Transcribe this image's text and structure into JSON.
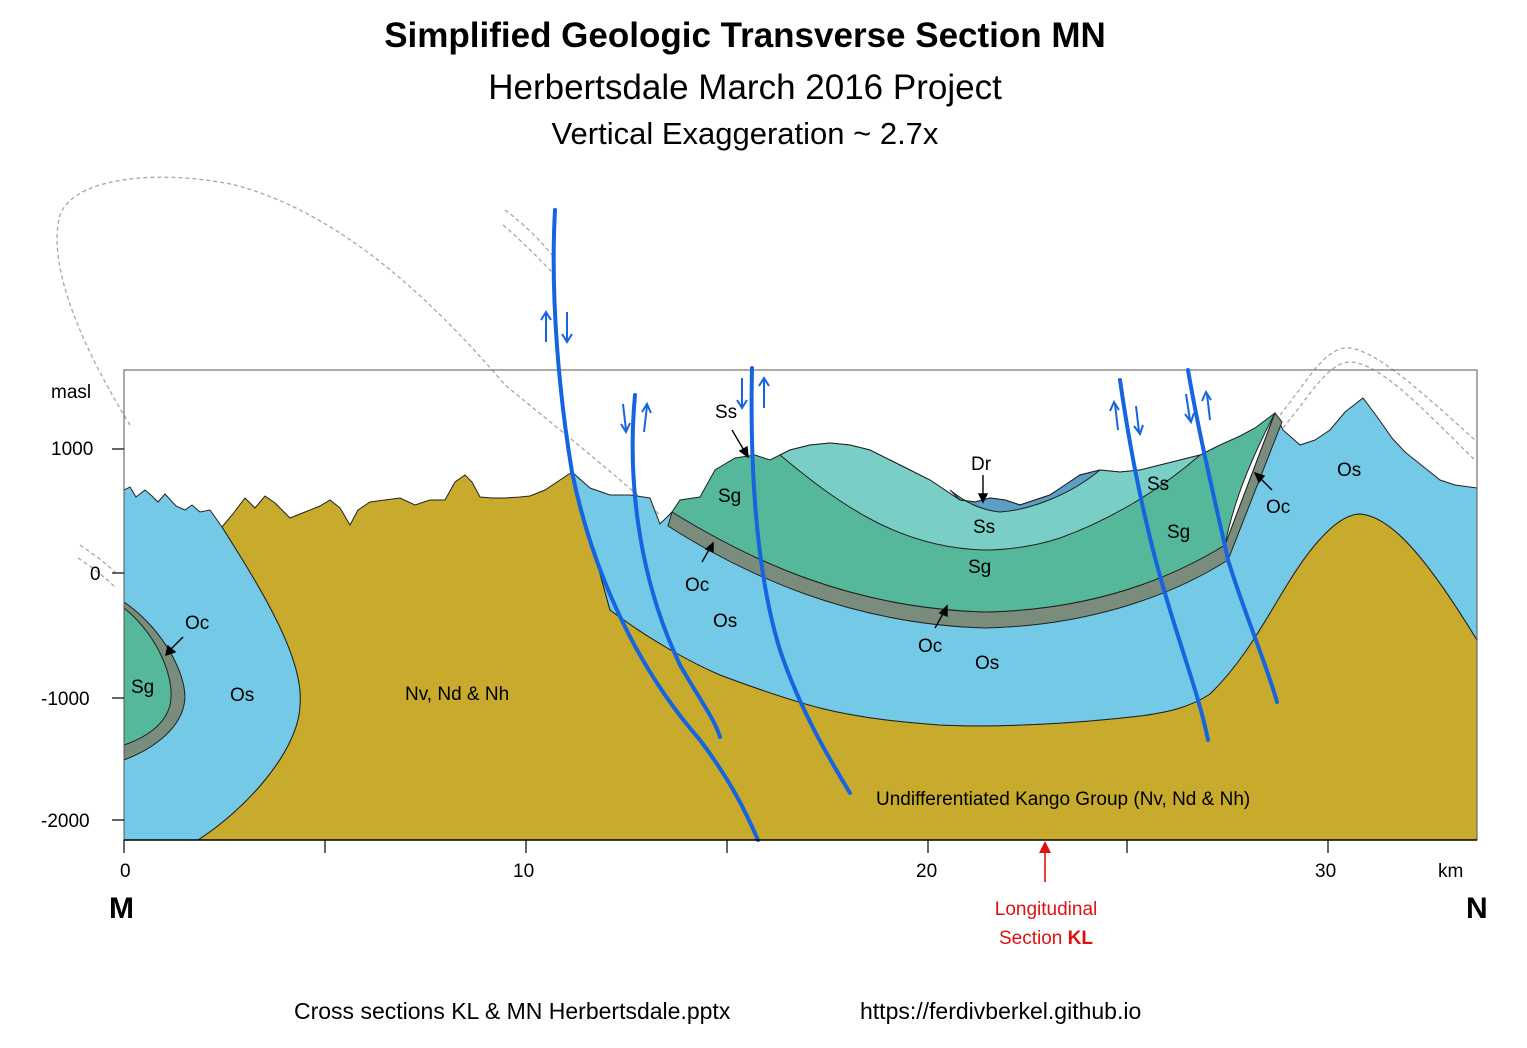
{
  "title": "Simplified Geologic Transverse Section MN",
  "subtitle": "Herbertsdale March 2016 Project",
  "exaggeration": "Vertical Exaggeration ~ 2.7x",
  "axes": {
    "y_unit": "masl",
    "y_ticks": [
      "1000",
      "0",
      "-1000",
      "-2000"
    ],
    "x_unit": "km",
    "x_ticks": [
      "0",
      "10",
      "20",
      "30"
    ]
  },
  "end_labels": {
    "left": "M",
    "right": "N"
  },
  "marker": {
    "line1": "Longitudinal",
    "line2_prefix": "Section ",
    "line2_bold": "KL"
  },
  "units": {
    "os": "Os",
    "oc": "Oc",
    "sg": "Sg",
    "ss": "Ss",
    "dr": "Dr",
    "n_group": "Nv, Nd & Nh",
    "kango": "Undifferentiated Kango Group (Nv, Nd & Nh)"
  },
  "colors": {
    "os": "#74c9e6",
    "oc": "#7a8c7c",
    "sg": "#55b89a",
    "ss": "#79cfc5",
    "dr": "#5b9ec6",
    "n_group": "#c8ab2d",
    "fault": "#1565e0",
    "marker": "#e01010"
  },
  "footer": {
    "file": "Cross sections KL & MN Herbertsdale.pptx",
    "url": "https://ferdivberkel.github.io"
  }
}
